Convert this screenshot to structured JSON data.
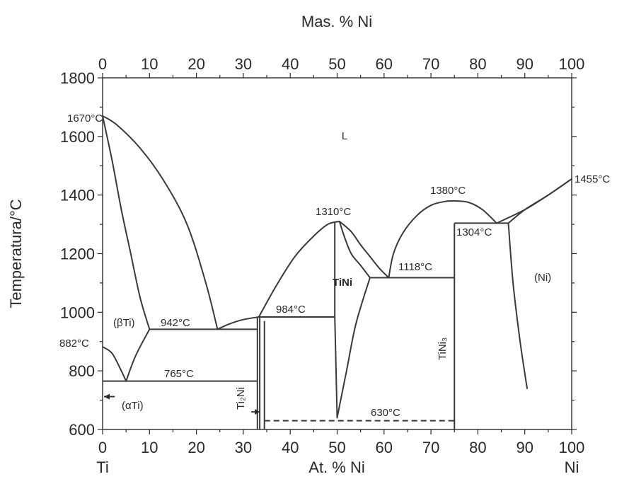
{
  "chart_data": {
    "type": "line",
    "subtype": "binary-phase-diagram",
    "colors": {
      "ink": "#2a2a2a",
      "background": "#ffffff"
    },
    "xlabel_bottom": "At. % Ni",
    "xlabel_top": "Mas. % Ni",
    "ylabel": "Temperatura/°C",
    "xlim": [
      0,
      100
    ],
    "ylim": [
      600,
      1800
    ],
    "x_ticks_bottom": [
      "0",
      "10",
      "20",
      "30",
      "40",
      "50",
      "60",
      "70",
      "80",
      "90",
      "100"
    ],
    "x_ticks_top": [
      "0",
      "10",
      "20",
      "30",
      "40",
      "50",
      "60",
      "70",
      "80",
      "90",
      "100"
    ],
    "y_ticks": [
      "600",
      "800",
      "1000",
      "1200",
      "1400",
      "1600",
      "1800"
    ],
    "left_element": "Ti",
    "right_element": "Ni",
    "grid": false,
    "labels": {
      "t1670": "1670°C",
      "t1455": "1455°C",
      "t1380": "1380°C",
      "t1310": "1310°C",
      "t1304": "1304°C",
      "t1118": "1118°C",
      "t984": "984°C",
      "t942": "942°C",
      "t882": "882°C",
      "t765": "765°C",
      "t630": "630°C",
      "liquid": "L",
      "beta_ti": "(βTi)",
      "alpha_ti": "(αTi)",
      "ti2ni": "Ti₂Ni",
      "tini": "TiNi",
      "tini3": "TiNi₃",
      "ni_phase": "(Ni)"
    },
    "curves": [
      {
        "name": "liquidus-ti-rich",
        "x": [
          0,
          3,
          8,
          13,
          18,
          22,
          24.5
        ],
        "y": [
          1670,
          1640,
          1560,
          1450,
          1300,
          1100,
          942
        ]
      },
      {
        "name": "solidus-beta-ti",
        "x": [
          0,
          2,
          4,
          6,
          8,
          10
        ],
        "y": [
          1670,
          1520,
          1350,
          1200,
          1050,
          942
        ]
      },
      {
        "name": "beta-transus",
        "x": [
          0,
          2,
          4,
          5
        ],
        "y": [
          882,
          860,
          800,
          765
        ]
      },
      {
        "name": "beta-solvus",
        "x": [
          5,
          7,
          10
        ],
        "y": [
          765,
          850,
          942
        ]
      },
      {
        "name": "liquidus-ti2ni",
        "x": [
          24.5,
          27,
          30,
          33.3
        ],
        "y": [
          942,
          960,
          975,
          984
        ]
      },
      {
        "name": "liquidus-tini-left",
        "x": [
          33.3,
          37,
          41,
          45,
          48,
          50.5
        ],
        "y": [
          984,
          1090,
          1190,
          1260,
          1300,
          1310
        ]
      },
      {
        "name": "liquidus-tini-right",
        "x": [
          50.5,
          53,
          55,
          57,
          59,
          61
        ],
        "y": [
          1310,
          1275,
          1230,
          1190,
          1150,
          1118
        ]
      },
      {
        "name": "solidus-tini-right",
        "x": [
          50.5,
          51.5,
          53,
          55,
          57
        ],
        "y": [
          1310,
          1260,
          1200,
          1160,
          1118
        ]
      },
      {
        "name": "tini-solvus-left",
        "x": [
          49.5,
          50
        ],
        "y": [
          984,
          640
        ]
      },
      {
        "name": "tini-solvus-right",
        "x": [
          50,
          52,
          54,
          57
        ],
        "y": [
          640,
          800,
          960,
          1118
        ]
      },
      {
        "name": "liquidus-tini3-left",
        "x": [
          61,
          62,
          64,
          67,
          70,
          73,
          75
        ],
        "y": [
          1118,
          1200,
          1270,
          1330,
          1365,
          1378,
          1380
        ]
      },
      {
        "name": "liquidus-tini3-right",
        "x": [
          75,
          78,
          81,
          84
        ],
        "y": [
          1380,
          1375,
          1350,
          1304
        ]
      },
      {
        "name": "liquidus-ni",
        "x": [
          84,
          90,
          95,
          100
        ],
        "y": [
          1304,
          1350,
          1400,
          1455
        ]
      },
      {
        "name": "solidus-ni",
        "x": [
          86.5,
          90,
          95,
          100
        ],
        "y": [
          1304,
          1350,
          1400,
          1455
        ]
      },
      {
        "name": "ni-solvus",
        "x": [
          86.5,
          87.5,
          89,
          90.5
        ],
        "y": [
          1304,
          1100,
          900,
          740
        ]
      }
    ],
    "isotherms": [
      {
        "name": "eutectic-942",
        "x": [
          10,
          33
        ],
        "y": 942
      },
      {
        "name": "eutectoid-765",
        "x": [
          0,
          33
        ],
        "y": 765
      },
      {
        "name": "peritectic-984",
        "x": [
          33.3,
          49.5
        ],
        "y": 984
      },
      {
        "name": "eutectic-1118",
        "x": [
          57,
          75
        ],
        "y": 1118
      },
      {
        "name": "eutectic-1304",
        "x": [
          75,
          86.5
        ],
        "y": 1304
      },
      {
        "name": "transformation-630",
        "x": [
          34.5,
          75
        ],
        "y": 630,
        "style": "dashed"
      }
    ],
    "compound_lines": [
      {
        "name": "ti2ni-left",
        "x": 33,
        "y": [
          600,
          984
        ]
      },
      {
        "name": "ti2ni-right",
        "x": 33.5,
        "y": [
          600,
          984
        ]
      },
      {
        "name": "ti2ni-third",
        "x": 34.5,
        "y": [
          600,
          970
        ]
      },
      {
        "name": "tini-left-boundary",
        "x": 49.5,
        "y": [
          984,
          1310
        ]
      },
      {
        "name": "tini3-line",
        "x": 75,
        "y": [
          600,
          1304
        ]
      }
    ],
    "alpha_ti_arrow": {
      "x_start": 0,
      "x_end": 2.6,
      "y": 700
    },
    "ti2ni_arrow": {
      "x": 33.5,
      "y": 660
    }
  }
}
